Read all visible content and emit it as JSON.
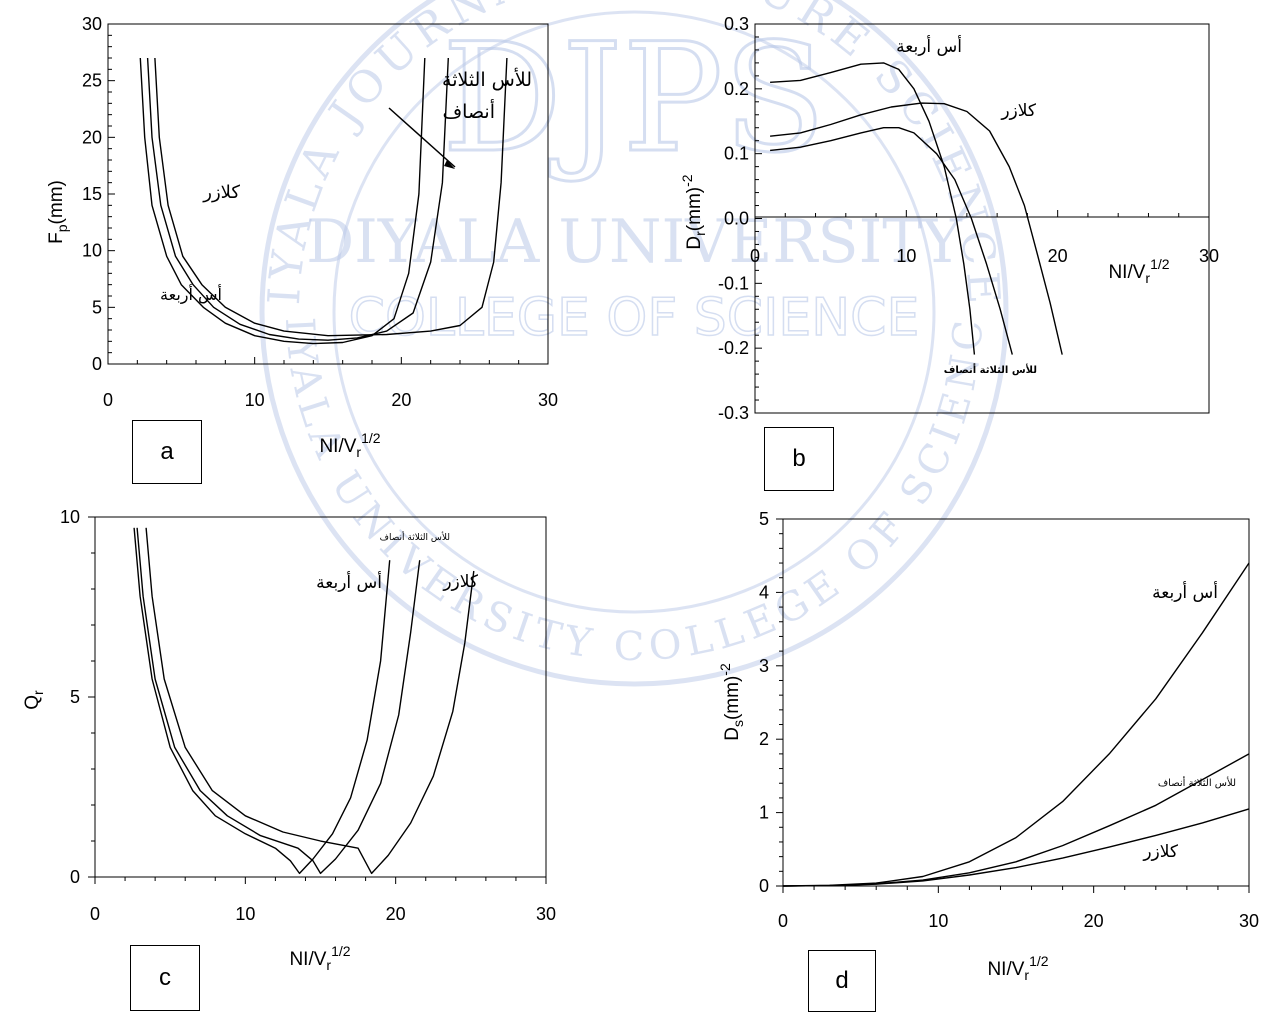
{
  "watermark": {
    "letters": "DJPS",
    "text_line1": "DIYALA UNIVERSITY",
    "text_line2": "COLLEGE OF SCIENCE",
    "ring_text": "DIYALA JOURNAL FOR PURE SCIENCES",
    "ring_bottom": "DIYALA UNIVERSITY COLLEGE OF SCIENCE",
    "color": "#b9c8e8"
  },
  "panels": {
    "a": {
      "label": "a"
    },
    "b": {
      "label": "b"
    },
    "c": {
      "label": "c"
    },
    "d": {
      "label": "d"
    }
  },
  "chart_data": [
    {
      "id": "a",
      "type": "line",
      "title": "",
      "ylabel": "Fp(mm)",
      "xlabel": "NI/Vr^1/2",
      "xlim": [
        0,
        30
      ],
      "ylim": [
        0,
        30
      ],
      "xticks": [
        0,
        10,
        20,
        30
      ],
      "yticks": [
        0,
        5,
        10,
        15,
        20,
        25,
        30
      ],
      "annotations": [
        "للأس الثلاثة",
        "أنصاف",
        "كلازر",
        "أس أربعة"
      ],
      "series": [
        {
          "points": [
            [
              2.2,
              27
            ],
            [
              2.5,
              20
            ],
            [
              3,
              14
            ],
            [
              4,
              9.5
            ],
            [
              5,
              7
            ],
            [
              6.5,
              5
            ],
            [
              8,
              3.6
            ],
            [
              10,
              2.5
            ],
            [
              12,
              2
            ],
            [
              14,
              1.8
            ],
            [
              16,
              1.9
            ],
            [
              18,
              2.5
            ],
            [
              19.5,
              4
            ],
            [
              20.5,
              8
            ],
            [
              21.2,
              15
            ],
            [
              21.6,
              27
            ]
          ]
        },
        {
          "points": [
            [
              2.7,
              27
            ],
            [
              3,
              20
            ],
            [
              3.6,
              14
            ],
            [
              4.6,
              9.5
            ],
            [
              5.8,
              7
            ],
            [
              7.2,
              5
            ],
            [
              9,
              3.5
            ],
            [
              11,
              2.6
            ],
            [
              13,
              2.2
            ],
            [
              15,
              2.1
            ],
            [
              17,
              2.3
            ],
            [
              19,
              2.9
            ],
            [
              20.8,
              4.5
            ],
            [
              22,
              9
            ],
            [
              22.8,
              16
            ],
            [
              23.2,
              27
            ]
          ]
        },
        {
          "points": [
            [
              3.2,
              27
            ],
            [
              3.5,
              20
            ],
            [
              4.1,
              14
            ],
            [
              5.1,
              9.5
            ],
            [
              6.4,
              7
            ],
            [
              8,
              5
            ],
            [
              10,
              3.6
            ],
            [
              12,
              2.9
            ],
            [
              15,
              2.5
            ],
            [
              19,
              2.6
            ],
            [
              22,
              2.9
            ],
            [
              24,
              3.4
            ],
            [
              25.5,
              5
            ],
            [
              26.3,
              9
            ],
            [
              26.8,
              16
            ],
            [
              27.2,
              27
            ]
          ]
        }
      ]
    },
    {
      "id": "b",
      "type": "line",
      "title": "",
      "ylabel": "Dr(mm)-2",
      "xlabel": "NI/Vr^1/2",
      "xlim": [
        0,
        30
      ],
      "ylim": [
        -0.3,
        0.3
      ],
      "xticks": [
        0,
        10,
        20,
        30
      ],
      "yticks": [
        -0.3,
        -0.2,
        -0.1,
        0,
        0.1,
        0.2,
        0.3
      ],
      "annotations": [
        "أس أربعة",
        "كلازر",
        "للأس الثلاثة أنصاف"
      ],
      "series": [
        {
          "points": [
            [
              1,
              0.21
            ],
            [
              3,
              0.213
            ],
            [
              5,
              0.225
            ],
            [
              7,
              0.238
            ],
            [
              8.5,
              0.24
            ],
            [
              9.5,
              0.23
            ],
            [
              10.5,
              0.2
            ],
            [
              11.5,
              0.15
            ],
            [
              12.5,
              0.08
            ],
            [
              13.3,
              0.0
            ],
            [
              13.8,
              -0.07
            ],
            [
              14.2,
              -0.14
            ],
            [
              14.5,
              -0.21
            ]
          ]
        },
        {
          "points": [
            [
              1,
              0.127
            ],
            [
              3,
              0.132
            ],
            [
              5,
              0.145
            ],
            [
              7,
              0.16
            ],
            [
              9,
              0.172
            ],
            [
              11,
              0.178
            ],
            [
              12.5,
              0.177
            ],
            [
              14,
              0.165
            ],
            [
              15.5,
              0.135
            ],
            [
              16.8,
              0.08
            ],
            [
              17.8,
              0.02
            ],
            [
              18.6,
              -0.05
            ],
            [
              19.5,
              -0.13
            ],
            [
              20.3,
              -0.21
            ]
          ]
        },
        {
          "points": [
            [
              1,
              0.105
            ],
            [
              3,
              0.11
            ],
            [
              5,
              0.12
            ],
            [
              7,
              0.132
            ],
            [
              8.5,
              0.14
            ],
            [
              9.5,
              0.14
            ],
            [
              10.5,
              0.132
            ],
            [
              12,
              0.1
            ],
            [
              13.2,
              0.06
            ],
            [
              14.3,
              0.0
            ],
            [
              15.3,
              -0.07
            ],
            [
              16.2,
              -0.14
            ],
            [
              17,
              -0.21
            ]
          ]
        }
      ]
    },
    {
      "id": "c",
      "type": "line",
      "title": "",
      "ylabel": "Qr",
      "xlabel": "NI/Vr^1/2",
      "xlim": [
        0,
        30
      ],
      "ylim": [
        0,
        10
      ],
      "xticks": [
        0,
        10,
        20,
        30
      ],
      "yticks": [
        0,
        5,
        10
      ],
      "annotations": [
        "للأس الثلاثة أنصاف",
        "أس أربعة",
        "كلازر"
      ],
      "series": [
        {
          "points": [
            [
              2.6,
              9.7
            ],
            [
              3,
              7.8
            ],
            [
              3.8,
              5.5
            ],
            [
              5,
              3.6
            ],
            [
              6.5,
              2.4
            ],
            [
              8,
              1.7
            ],
            [
              10,
              1.2
            ],
            [
              12,
              0.8
            ],
            [
              13,
              0.45
            ],
            [
              13.6,
              0.1
            ],
            [
              14.5,
              0.5
            ],
            [
              15.8,
              1.2
            ],
            [
              17,
              2.2
            ],
            [
              18.1,
              3.8
            ],
            [
              19,
              6
            ],
            [
              19.6,
              8.8
            ]
          ]
        },
        {
          "points": [
            [
              2.8,
              9.7
            ],
            [
              3.2,
              7.8
            ],
            [
              4,
              5.5
            ],
            [
              5.3,
              3.6
            ],
            [
              7,
              2.4
            ],
            [
              8.8,
              1.7
            ],
            [
              11,
              1.15
            ],
            [
              13.5,
              0.8
            ],
            [
              14.5,
              0.45
            ],
            [
              15,
              0.1
            ],
            [
              16,
              0.5
            ],
            [
              17.5,
              1.3
            ],
            [
              19,
              2.6
            ],
            [
              20.2,
              4.5
            ],
            [
              21,
              6.8
            ],
            [
              21.6,
              8.8
            ]
          ]
        },
        {
          "points": [
            [
              3.4,
              9.7
            ],
            [
              3.8,
              7.8
            ],
            [
              4.6,
              5.5
            ],
            [
              6,
              3.6
            ],
            [
              7.8,
              2.4
            ],
            [
              10,
              1.7
            ],
            [
              12.5,
              1.25
            ],
            [
              15,
              1.0
            ],
            [
              17.5,
              0.8
            ],
            [
              18.4,
              0.1
            ],
            [
              19.5,
              0.6
            ],
            [
              21,
              1.5
            ],
            [
              22.5,
              2.8
            ],
            [
              23.8,
              4.6
            ],
            [
              24.6,
              6.5
            ],
            [
              25.2,
              8.5
            ]
          ]
        }
      ]
    },
    {
      "id": "d",
      "type": "line",
      "title": "",
      "ylabel": "Ds(mm)-2",
      "xlabel": "NI/Vr^1/2",
      "xlim": [
        0,
        30
      ],
      "ylim": [
        0,
        5
      ],
      "xticks": [
        0,
        10,
        20,
        30
      ],
      "yticks": [
        0,
        1,
        2,
        3,
        4,
        5
      ],
      "annotations": [
        "أس أربعة",
        "للأس الثلاثة أنصاف",
        "كلازر"
      ],
      "series": [
        {
          "points": [
            [
              0,
              0
            ],
            [
              3,
              0.01
            ],
            [
              6,
              0.04
            ],
            [
              9,
              0.13
            ],
            [
              12,
              0.33
            ],
            [
              15,
              0.66
            ],
            [
              18,
              1.15
            ],
            [
              21,
              1.8
            ],
            [
              24,
              2.55
            ],
            [
              27,
              3.45
            ],
            [
              30,
              4.4
            ]
          ]
        },
        {
          "points": [
            [
              0,
              0
            ],
            [
              3,
              0.005
            ],
            [
              6,
              0.03
            ],
            [
              9,
              0.08
            ],
            [
              12,
              0.18
            ],
            [
              15,
              0.33
            ],
            [
              18,
              0.55
            ],
            [
              21,
              0.82
            ],
            [
              24,
              1.1
            ],
            [
              27,
              1.45
            ],
            [
              30,
              1.8
            ]
          ]
        },
        {
          "points": [
            [
              0,
              0
            ],
            [
              3,
              0.005
            ],
            [
              6,
              0.025
            ],
            [
              9,
              0.07
            ],
            [
              12,
              0.15
            ],
            [
              15,
              0.25
            ],
            [
              18,
              0.38
            ],
            [
              21,
              0.53
            ],
            [
              24,
              0.69
            ],
            [
              27,
              0.86
            ],
            [
              30,
              1.05
            ]
          ]
        }
      ]
    }
  ]
}
